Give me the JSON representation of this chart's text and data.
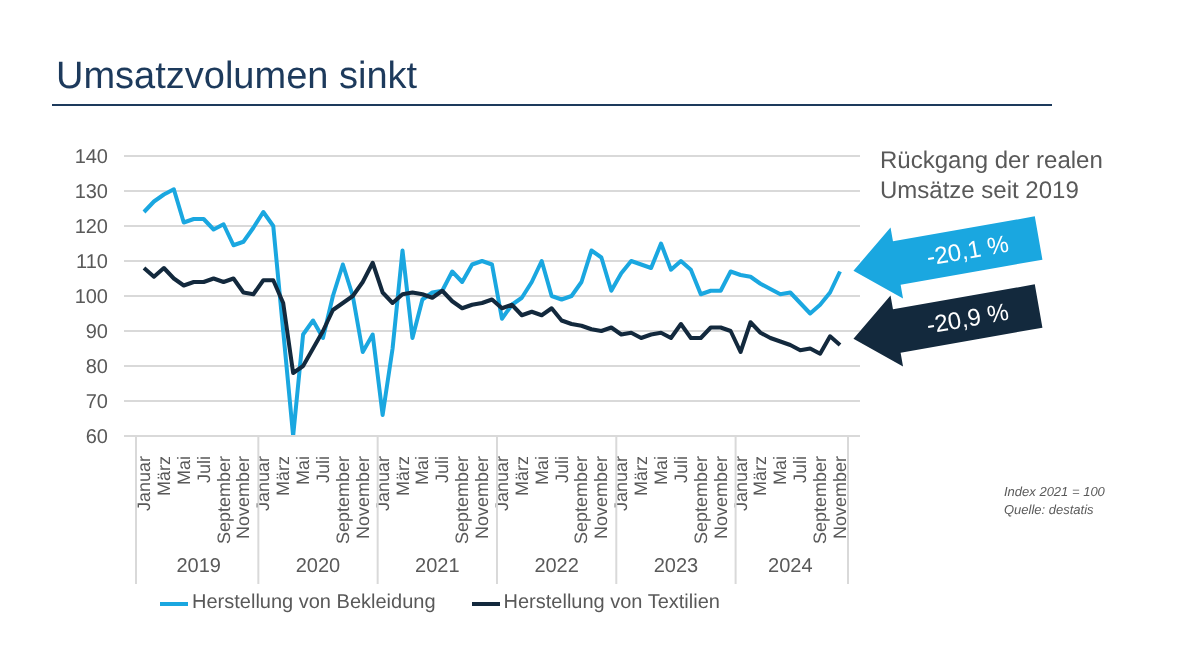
{
  "chart_data": {
    "type": "line",
    "title": "Umsatzvolumen sinkt",
    "categories": [
      "Januar",
      null,
      "März",
      null,
      "Mai",
      null,
      "Juli",
      null,
      "September",
      null,
      "November",
      null,
      "Januar",
      null,
      "März",
      null,
      "Mai",
      null,
      "Juli",
      null,
      "September",
      null,
      "November",
      null,
      "Januar",
      null,
      "März",
      null,
      "Mai",
      null,
      "Juli",
      null,
      "September",
      null,
      "November",
      null,
      "Januar",
      null,
      "März",
      null,
      "Mai",
      null,
      "Juli",
      null,
      "September",
      null,
      "November",
      null,
      "Januar",
      null,
      "März",
      null,
      "Mai",
      null,
      "Juli",
      null,
      "September",
      null,
      "November",
      null,
      "Januar",
      null,
      "März",
      null,
      "Mai",
      null,
      "Juli",
      null,
      "September",
      null,
      "November"
    ],
    "series": [
      {
        "name": "Herstellung von Bekleidung",
        "color": "#1aa7e0",
        "values": [
          124,
          127,
          129,
          130.5,
          121,
          122,
          122,
          119,
          120.5,
          114.5,
          115.5,
          119.5,
          124,
          120,
          90,
          60,
          89,
          93,
          88,
          100,
          109,
          100,
          84,
          89,
          66,
          85,
          113,
          88,
          99,
          101,
          101.5,
          107,
          104,
          109,
          110,
          109,
          93.5,
          97.5,
          99.5,
          104,
          110,
          100,
          99,
          100,
          104,
          113,
          111,
          101.5,
          106.5,
          110,
          109,
          108,
          115,
          107.5,
          110,
          107.5,
          100.5,
          101.5,
          101.5,
          107,
          106,
          105.5,
          103.5,
          102,
          100.5,
          101,
          98,
          95,
          97.5,
          101,
          107
        ]
      },
      {
        "name": "Herstellung von Textilien",
        "color": "#13293d",
        "values": [
          108,
          105.5,
          108,
          105,
          103,
          104,
          104,
          105,
          104,
          105,
          101,
          100.5,
          104.5,
          104.5,
          98,
          78,
          80,
          85,
          90,
          96,
          98,
          100,
          104,
          109.5,
          101,
          98,
          100.5,
          101,
          100.5,
          99.5,
          101.5,
          98.5,
          96.5,
          97.5,
          98,
          99,
          96.5,
          97.5,
          94.5,
          95.5,
          94.5,
          96.5,
          93,
          92,
          91.5,
          90.5,
          90,
          91,
          89,
          89.5,
          88,
          89,
          89.5,
          88,
          92,
          88,
          88,
          91,
          91,
          90,
          84,
          92.5,
          89.5,
          88,
          87,
          86,
          84.5,
          85,
          83.5,
          88.5,
          86
        ]
      }
    ],
    "ylim": [
      60,
      140
    ],
    "yticks": [
      60,
      70,
      80,
      90,
      100,
      110,
      120,
      130,
      140
    ],
    "grid": "y",
    "legend": "bottom",
    "annotations": [
      "2019",
      "2020",
      "2021",
      "2022",
      "2023",
      "2024",
      "Rückgang der realen Umsätze seit 2019",
      "-20,1 %",
      "-20,9 %",
      "Index 2021 = 100",
      "Quelle: destatis"
    ]
  }
}
